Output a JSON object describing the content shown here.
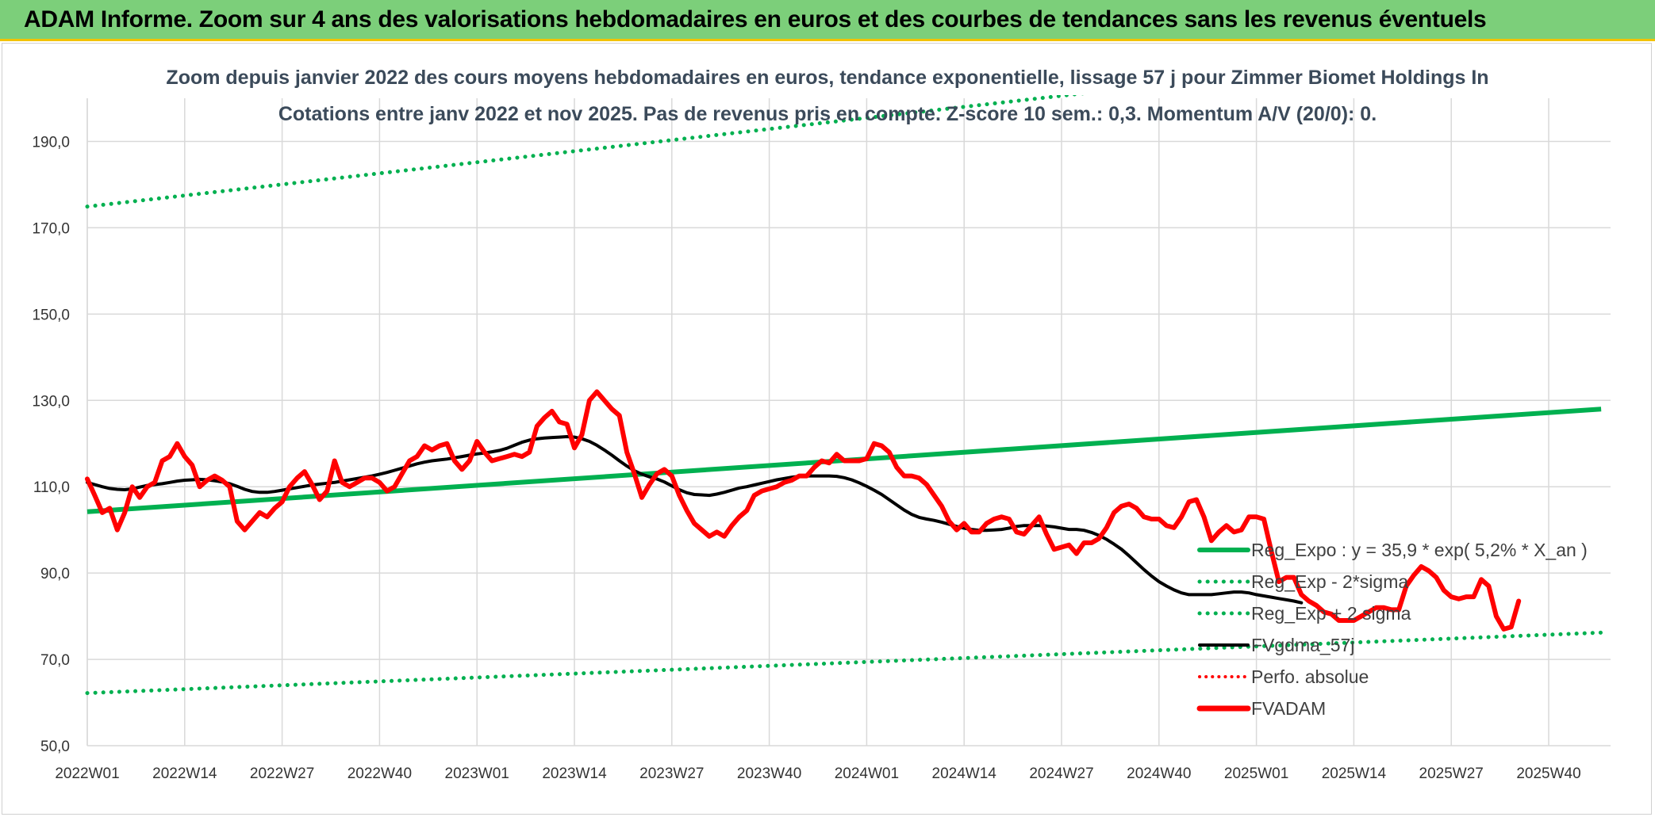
{
  "banner": {
    "title": "ADAM Informe. Zoom sur 4 ans des valorisations hebdomadaires en euros et des courbes de tendances sans les revenus éventuels"
  },
  "colors": {
    "banner_bg": "#7ccf7a",
    "banner_border": "#f2c200",
    "trend": "#00b050",
    "fvadam": "#ff0000",
    "fvgdma": "#000000",
    "grid": "#d9d9d9"
  },
  "chart_data": {
    "type": "line",
    "title": "Zoom depuis janvier 2022 des cours moyens hebdomadaires en euros, tendance exponentielle, lissage 57 j pour Zimmer Biomet Holdings In",
    "subtitle": "Cotations entre janv 2022 et nov 2025. Pas de revenus pris en compte. Z-score 10 sem.: 0,3. Momentum A/V (20/0): 0.",
    "ylim": [
      50,
      200
    ],
    "yticks": [
      "50,0",
      "70,0",
      "90,0",
      "110,0",
      "130,0",
      "150,0",
      "170,0",
      "190,0"
    ],
    "ytick_values": [
      50,
      70,
      90,
      110,
      130,
      150,
      170,
      190
    ],
    "xticks": [
      "2022W01",
      "2022W14",
      "2022W27",
      "2022W40",
      "2023W01",
      "2023W14",
      "2023W27",
      "2023W40",
      "2024W01",
      "2024W14",
      "2024W27",
      "2024W40",
      "2025W01",
      "2025W14",
      "2025W27",
      "2025W40"
    ],
    "grid": true,
    "legend_position": "bottom-right",
    "legend": [
      "Reg_Expo : y = 35,9 * exp( 5,2% *  X_an )",
      "Reg_Exp - 2*sigma",
      "Reg_Exp + 2 sigma",
      "FVgdma_57j",
      "Perfo. absolue",
      "FVADAM"
    ],
    "series": [
      {
        "name": "Reg_Expo : y = 35,9 * exp( 5,2% *  X_an )",
        "x": [
          "2022W01",
          "2025W47"
        ],
        "values": [
          104.2,
          128.0
        ]
      },
      {
        "name": "Reg_Exp - 2*sigma",
        "x": [
          "2022W01",
          "2025W47"
        ],
        "values": [
          62.2,
          76.2
        ]
      },
      {
        "name": "Reg_Exp + 2 sigma",
        "x": [
          "2022W01",
          "2025W47"
        ],
        "values": [
          174.9,
          214.8
        ]
      },
      {
        "name": "FVgdma_57j",
        "values": [
          111.0,
          110.5,
          110.0,
          109.6,
          109.4,
          109.3,
          109.5,
          109.9,
          110.3,
          110.5,
          110.7,
          111.0,
          111.3,
          111.5,
          111.6,
          111.7,
          111.6,
          111.4,
          111.1,
          110.7,
          110.1,
          109.4,
          108.9,
          108.7,
          108.7,
          108.9,
          109.2,
          109.5,
          109.8,
          110.1,
          110.4,
          110.6,
          110.8,
          111.0,
          111.3,
          111.6,
          111.9,
          112.2,
          112.5,
          112.9,
          113.3,
          113.8,
          114.3,
          114.8,
          115.3,
          115.7,
          116.0,
          116.2,
          116.4,
          116.7,
          117.0,
          117.3,
          117.6,
          117.8,
          118.1,
          118.4,
          118.9,
          119.6,
          120.3,
          120.8,
          121.1,
          121.3,
          121.4,
          121.5,
          121.6,
          121.5,
          121.1,
          120.5,
          119.6,
          118.5,
          117.3,
          116.0,
          114.8,
          113.7,
          112.9,
          112.3,
          111.8,
          111.1,
          110.2,
          109.3,
          108.6,
          108.2,
          108.1,
          108.0,
          108.3,
          108.7,
          109.2,
          109.7,
          110.0,
          110.4,
          110.8,
          111.2,
          111.6,
          111.9,
          112.2,
          112.4,
          112.5,
          112.5,
          112.5,
          112.5,
          112.4,
          112.1,
          111.6,
          110.9,
          110.1,
          109.2,
          108.2,
          107.0,
          105.8,
          104.6,
          103.6,
          102.9,
          102.5,
          102.2,
          101.8,
          101.3,
          100.8,
          100.4,
          100.1,
          99.9,
          99.9,
          100.0,
          100.1,
          100.4,
          100.8,
          101.0,
          101.0,
          101.0,
          100.9,
          100.7,
          100.4,
          100.1,
          100.1,
          99.9,
          99.4,
          98.7,
          97.8,
          96.7,
          95.5,
          94.0,
          92.4,
          90.8,
          89.3,
          88.0,
          87.0,
          86.1,
          85.4,
          85.0,
          85.0,
          85.0,
          85.0,
          85.2,
          85.4,
          85.6,
          85.6,
          85.4,
          85.0,
          84.7,
          84.4,
          84.1,
          83.8,
          83.5,
          83.1
        ]
      },
      {
        "name": "FVADAM",
        "values": [
          111.8,
          108.0,
          104.0,
          105.0,
          100.0,
          104.0,
          110.0,
          107.5,
          110.0,
          111.0,
          116.0,
          117.0,
          120.0,
          117.0,
          115.0,
          110.0,
          111.5,
          112.5,
          111.5,
          110.0,
          102.0,
          100.0,
          102.0,
          104.0,
          103.0,
          105.0,
          106.5,
          110.0,
          112.0,
          113.5,
          110.5,
          107.0,
          109.0,
          116.0,
          111.0,
          110.0,
          111.0,
          112.0,
          112.0,
          111.0,
          109.0,
          110.0,
          113.0,
          116.0,
          117.0,
          119.5,
          118.5,
          119.5,
          120.0,
          116.0,
          114.0,
          116.0,
          120.5,
          118.0,
          116.0,
          116.5,
          117.0,
          117.5,
          117.0,
          118.0,
          124.0,
          126.0,
          127.5,
          125.0,
          124.5,
          119.0,
          122.0,
          130.0,
          132.0,
          130.0,
          128.0,
          126.5,
          118.0,
          113.0,
          107.5,
          110.5,
          113.0,
          114.0,
          112.5,
          108.0,
          104.5,
          101.5,
          100.0,
          98.5,
          99.5,
          98.5,
          101.0,
          103.0,
          104.5,
          108.0,
          109.0,
          109.5,
          110.0,
          111.0,
          111.5,
          112.5,
          112.5,
          114.5,
          116.0,
          115.5,
          117.5,
          116.0,
          116.0,
          116.0,
          116.5,
          120.0,
          119.5,
          118.0,
          114.5,
          112.5,
          112.5,
          112.0,
          110.5,
          108.0,
          105.5,
          102.0,
          100.0,
          101.5,
          99.5,
          99.5,
          101.5,
          102.5,
          103.0,
          102.5,
          99.5,
          99.0,
          101.0,
          103.0,
          99.0,
          95.5,
          96.0,
          96.5,
          94.5,
          97.0,
          97.0,
          98.0,
          100.5,
          104.0,
          105.5,
          106.0,
          105.0,
          103.0,
          102.5,
          102.5,
          101.0,
          100.5,
          103.0,
          106.5,
          107.0,
          103.0,
          97.5,
          99.5,
          101.0,
          99.5,
          100.0,
          103.0,
          103.0,
          102.5,
          95.0,
          88.0,
          89.0,
          89.0,
          85.0,
          83.5,
          82.5,
          81.0,
          80.5,
          79.0,
          79.0,
          79.0,
          80.0,
          81.0,
          82.0,
          82.0,
          81.5,
          81.5,
          87.0,
          89.5,
          91.5,
          90.5,
          89.0,
          86.0,
          84.5,
          84.0,
          84.5,
          84.5,
          88.5,
          87.0,
          80.0,
          77.0,
          77.5,
          83.5
        ]
      }
    ]
  }
}
